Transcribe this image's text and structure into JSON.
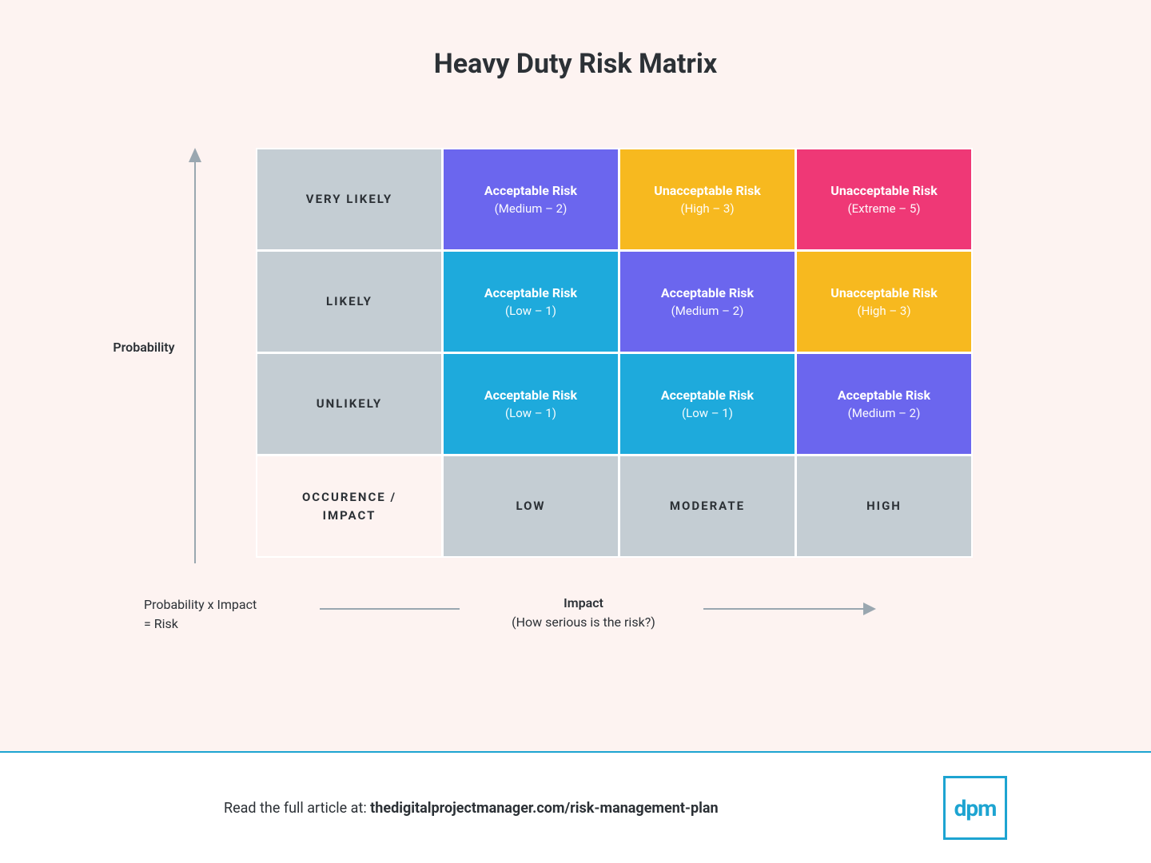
{
  "page": {
    "background_color": "#fdf3f1",
    "title": "Heavy Duty Risk Matrix",
    "title_color": "#2c3136",
    "title_fontsize": 34
  },
  "colors": {
    "header_bg": "#c4cdd3",
    "header_text": "#2c3136",
    "grid_gap": "#ffffff",
    "arrow": "#9aa7b0",
    "blue": "#1eaadc",
    "purple": "#6b66ee",
    "orange": "#f7b91f",
    "pink": "#ef3876",
    "brand": "#1da4d1"
  },
  "matrix": {
    "type": "heatmap-table",
    "row_headers": [
      "VERY LIKELY",
      "LIKELY",
      "UNLIKELY"
    ],
    "corner_label": "OCCURENCE / IMPACT",
    "col_headers": [
      "LOW",
      "MODERATE",
      "HIGH"
    ],
    "cells": [
      [
        {
          "line1": "Acceptable Risk",
          "line2": "(Medium – 2)",
          "color_key": "purple"
        },
        {
          "line1": "Unacceptable Risk",
          "line2": "(High – 3)",
          "color_key": "orange"
        },
        {
          "line1": "Unacceptable Risk",
          "line2": "(Extreme – 5)",
          "color_key": "pink"
        }
      ],
      [
        {
          "line1": "Acceptable Risk",
          "line2": "(Low – 1)",
          "color_key": "blue"
        },
        {
          "line1": "Acceptable Risk",
          "line2": "(Medium – 2)",
          "color_key": "purple"
        },
        {
          "line1": "Unacceptable Risk",
          "line2": "(High – 3)",
          "color_key": "orange"
        }
      ],
      [
        {
          "line1": "Acceptable Risk",
          "line2": "(Low – 1)",
          "color_key": "blue"
        },
        {
          "line1": "Acceptable Risk",
          "line2": "(Low – 1)",
          "color_key": "blue"
        },
        {
          "line1": "Acceptable Risk",
          "line2": "(Medium – 2)",
          "color_key": "purple"
        }
      ]
    ]
  },
  "axes": {
    "y_label": "Probability",
    "x_label": "Impact",
    "x_sublabel": "(How serious is the risk?)",
    "formula_line1": "Probability x Impact",
    "formula_line2": "= Risk"
  },
  "footer": {
    "prefix": "Read the full article at: ",
    "link": "thedigitalprojectmanager.com/risk-management-plan",
    "logo_text": "dpm"
  }
}
